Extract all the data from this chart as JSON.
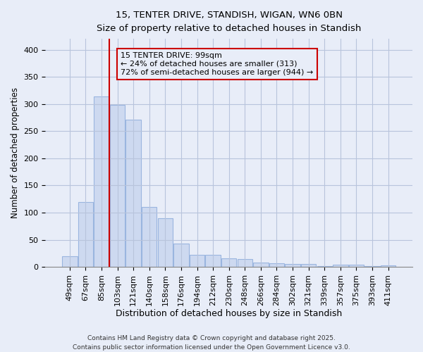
{
  "title_line1": "15, TENTER DRIVE, STANDISH, WIGAN, WN6 0BN",
  "title_line2": "Size of property relative to detached houses in Standish",
  "xlabel": "Distribution of detached houses by size in Standish",
  "ylabel": "Number of detached properties",
  "bar_labels": [
    "49sqm",
    "67sqm",
    "85sqm",
    "103sqm",
    "121sqm",
    "140sqm",
    "158sqm",
    "176sqm",
    "194sqm",
    "212sqm",
    "230sqm",
    "248sqm",
    "266sqm",
    "284sqm",
    "302sqm",
    "321sqm",
    "339sqm",
    "357sqm",
    "375sqm",
    "393sqm",
    "411sqm"
  ],
  "bar_values": [
    19,
    120,
    314,
    298,
    271,
    110,
    90,
    43,
    22,
    22,
    16,
    15,
    8,
    6,
    5,
    5,
    1,
    4,
    4,
    1,
    3
  ],
  "bar_color": "#cdd9f0",
  "bar_edge_color": "#9ab5df",
  "vline_x": 2.5,
  "vline_color": "#cc0000",
  "annotation_line1": "15 TENTER DRIVE: 99sqm",
  "annotation_line2": "← 24% of detached houses are smaller (313)",
  "annotation_line3": "72% of semi-detached houses are larger (944) →",
  "annotation_box_color": "#cc0000",
  "ylim": [
    0,
    420
  ],
  "yticks": [
    0,
    50,
    100,
    150,
    200,
    250,
    300,
    350,
    400
  ],
  "bg_color": "#e8edf8",
  "grid_color": "#b8c4dc",
  "footer_line1": "Contains HM Land Registry data © Crown copyright and database right 2025.",
  "footer_line2": "Contains public sector information licensed under the Open Government Licence v3.0."
}
